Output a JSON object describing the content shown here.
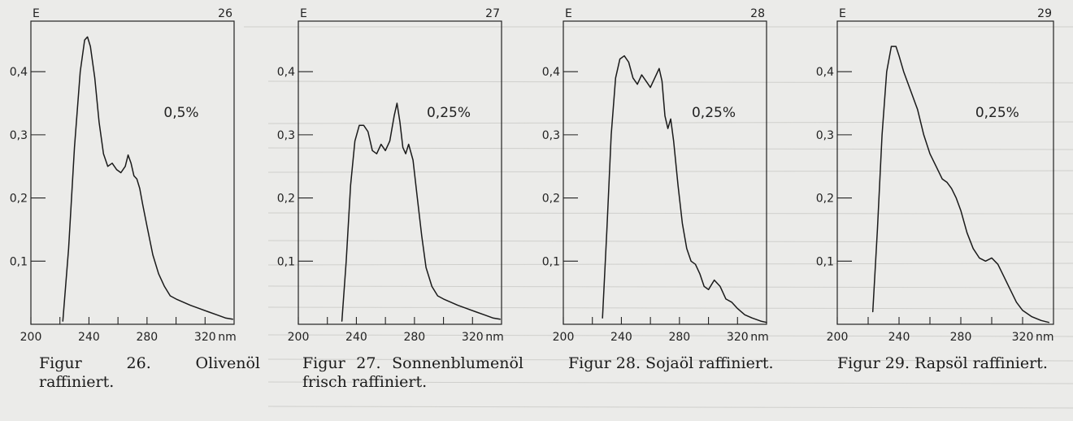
{
  "charts": [
    {
      "figure_number": "26",
      "caption_label": "Figur 26.",
      "caption_text": "Olivenöl raffiniert.",
      "chart_data": {
        "type": "line",
        "title": "",
        "xlabel": "nm",
        "ylabel": "E",
        "xlim": [
          200,
          340
        ],
        "ylim": [
          0,
          0.48
        ],
        "x_ticks": [
          "200",
          "240",
          "280",
          "320"
        ],
        "y_ticks": [
          "0,1",
          "0,2",
          "0,3",
          "0,4"
        ],
        "annotation": "0,5%",
        "grid": false,
        "series": [
          {
            "x": [
              222,
              226,
              230,
              234,
              237,
              239,
              241,
              244,
              247,
              250,
              253,
              256,
              259,
              262,
              265,
              267,
              269,
              271,
              273,
              275,
              277,
              280,
              284,
              288,
              292,
              296,
              300,
              305,
              310,
              316,
              322,
              328,
              334,
              339
            ],
            "y": [
              0.005,
              0.12,
              0.28,
              0.4,
              0.45,
              0.455,
              0.44,
              0.39,
              0.32,
              0.27,
              0.25,
              0.255,
              0.245,
              0.24,
              0.25,
              0.268,
              0.255,
              0.235,
              0.23,
              0.215,
              0.19,
              0.155,
              0.11,
              0.08,
              0.06,
              0.045,
              0.04,
              0.035,
              0.03,
              0.025,
              0.02,
              0.015,
              0.01,
              0.008
            ]
          }
        ]
      }
    },
    {
      "figure_number": "27",
      "caption_label": "Figur 27.",
      "caption_text": "Sonnenblumenöl frisch raffiniert.",
      "chart_data": {
        "type": "line",
        "title": "",
        "xlabel": "nm",
        "ylabel": "E",
        "xlim": [
          200,
          340
        ],
        "ylim": [
          0,
          0.48
        ],
        "x_ticks": [
          "200",
          "240",
          "280",
          "320"
        ],
        "y_ticks": [
          "0,1",
          "0,2",
          "0,3",
          "0,4"
        ],
        "annotation": "0,25%",
        "grid": false,
        "series": [
          {
            "x": [
              230,
              233,
              236,
              239,
              242,
              245,
              248,
              251,
              254,
              257,
              260,
              263,
              266,
              268,
              270,
              272,
              274,
              276,
              279,
              282,
              285,
              288,
              292,
              296,
              300,
              305,
              310,
              316,
              322,
              328,
              334,
              339
            ],
            "y": [
              0.005,
              0.1,
              0.22,
              0.29,
              0.315,
              0.315,
              0.305,
              0.275,
              0.27,
              0.285,
              0.275,
              0.29,
              0.33,
              0.35,
              0.32,
              0.28,
              0.27,
              0.285,
              0.26,
              0.2,
              0.14,
              0.09,
              0.06,
              0.045,
              0.04,
              0.035,
              0.03,
              0.025,
              0.02,
              0.015,
              0.01,
              0.008
            ]
          }
        ]
      }
    },
    {
      "figure_number": "28",
      "caption_label": "Figur 28.",
      "caption_text": "Sojaöl raffiniert.",
      "chart_data": {
        "type": "line",
        "title": "",
        "xlabel": "nm",
        "ylabel": "E",
        "xlim": [
          200,
          340
        ],
        "ylim": [
          0,
          0.48
        ],
        "x_ticks": [
          "200",
          "240",
          "280",
          "320"
        ],
        "y_ticks": [
          "0,1",
          "0,2",
          "0,3",
          "0,4"
        ],
        "annotation": "0,25%",
        "grid": false,
        "series": [
          {
            "x": [
              227,
              230,
              233,
              236,
              239,
              242,
              245,
              248,
              251,
              254,
              257,
              260,
              263,
              266,
              268,
              270,
              272,
              274,
              276,
              279,
              282,
              285,
              288,
              291,
              294,
              297,
              300,
              304,
              308,
              312,
              316,
              320,
              325,
              330,
              336,
              340
            ],
            "y": [
              0.01,
              0.15,
              0.3,
              0.39,
              0.42,
              0.425,
              0.415,
              0.39,
              0.38,
              0.395,
              0.385,
              0.375,
              0.39,
              0.405,
              0.385,
              0.33,
              0.31,
              0.325,
              0.29,
              0.22,
              0.16,
              0.12,
              0.1,
              0.095,
              0.08,
              0.06,
              0.055,
              0.07,
              0.06,
              0.04,
              0.035,
              0.025,
              0.015,
              0.01,
              0.005,
              0.003
            ]
          }
        ]
      }
    },
    {
      "figure_number": "29",
      "caption_label": "Figur 29.",
      "caption_text": "Rapsöl raffiniert.",
      "chart_data": {
        "type": "line",
        "title": "",
        "xlabel": "nm",
        "ylabel": "E",
        "xlim": [
          200,
          340
        ],
        "ylim": [
          0,
          0.48
        ],
        "x_ticks": [
          "200",
          "240",
          "280",
          "320"
        ],
        "y_ticks": [
          "0,1",
          "0,2",
          "0,3",
          "0,4"
        ],
        "annotation": "0,25%",
        "grid": false,
        "series": [
          {
            "x": [
              223,
              226,
              229,
              232,
              235,
              238,
              240,
              243,
              246,
              249,
              252,
              256,
              260,
              264,
              268,
              271,
              274,
              277,
              280,
              284,
              288,
              292,
              296,
              300,
              304,
              308,
              312,
              316,
              320,
              326,
              332,
              337
            ],
            "y": [
              0.02,
              0.15,
              0.3,
              0.4,
              0.44,
              0.44,
              0.425,
              0.4,
              0.38,
              0.36,
              0.34,
              0.3,
              0.27,
              0.25,
              0.23,
              0.225,
              0.215,
              0.2,
              0.18,
              0.145,
              0.12,
              0.105,
              0.1,
              0.105,
              0.095,
              0.075,
              0.055,
              0.035,
              0.022,
              0.012,
              0.006,
              0.003
            ]
          }
        ]
      }
    }
  ]
}
